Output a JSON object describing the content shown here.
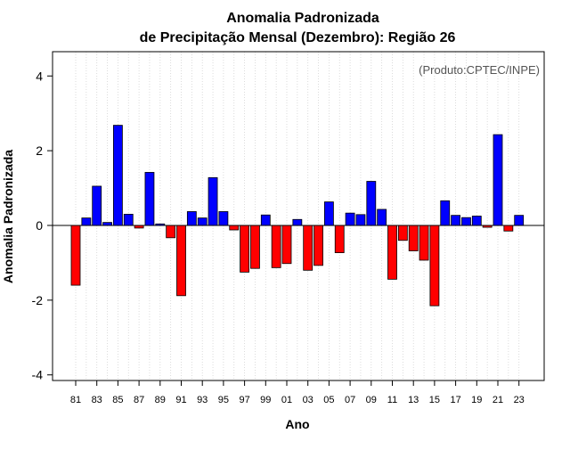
{
  "chart_data": {
    "type": "bar",
    "title": "Anomalia Padronizada",
    "subtitle": "de Precipitação Mensal (Dezembro): Região 26",
    "xlabel": "Ano",
    "ylabel": "Anomalia Padronizada",
    "credit": "(Produto:CPTEC/INPE)",
    "ylim": [
      -4.15,
      4.65
    ],
    "yticks": [
      -4,
      -2,
      0,
      2,
      4
    ],
    "grid": "vertical dotted",
    "colors": {
      "positive": "#0000ff",
      "negative": "#ff0000",
      "baseline": "#000000",
      "grid": "#d3d3d3"
    },
    "categories": [
      "81",
      "82",
      "83",
      "84",
      "85",
      "86",
      "87",
      "88",
      "89",
      "90",
      "91",
      "92",
      "93",
      "94",
      "95",
      "96",
      "97",
      "98",
      "99",
      "00",
      "01",
      "02",
      "03",
      "04",
      "05",
      "06",
      "07",
      "08",
      "09",
      "10",
      "11",
      "12",
      "13",
      "14",
      "15",
      "16",
      "17",
      "18",
      "19",
      "20",
      "21",
      "22",
      "23"
    ],
    "tick_labels": [
      "81",
      "83",
      "85",
      "87",
      "89",
      "91",
      "93",
      "95",
      "97",
      "99",
      "01",
      "03",
      "05",
      "07",
      "09",
      "11",
      "13",
      "15",
      "17",
      "19",
      "21",
      "23"
    ],
    "values": [
      -1.6,
      0.2,
      1.05,
      0.08,
      2.68,
      0.3,
      -0.07,
      1.42,
      0.04,
      -0.33,
      -1.88,
      0.37,
      0.2,
      1.28,
      0.37,
      -0.12,
      -1.25,
      -1.15,
      0.28,
      -1.13,
      -1.02,
      0.16,
      -1.2,
      -1.07,
      0.63,
      -0.73,
      0.33,
      0.29,
      1.18,
      0.43,
      -1.44,
      -0.4,
      -0.68,
      -0.93,
      -2.15,
      0.66,
      0.27,
      0.21,
      0.25,
      -0.05,
      2.43,
      -0.15,
      0.27
    ]
  }
}
